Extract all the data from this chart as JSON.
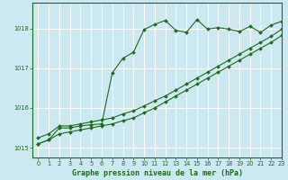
{
  "background_color": "#cce8f0",
  "grid_color": "#ffffff",
  "line_color": "#1e6b1e",
  "xlabel": "Graphe pression niveau de la mer (hPa)",
  "xlabel_color": "#1e6b1e",
  "xlim": [
    -0.5,
    23
  ],
  "ylim": [
    1014.75,
    1018.65
  ],
  "yticks": [
    1015,
    1016,
    1017,
    1018
  ],
  "xticks": [
    0,
    1,
    2,
    3,
    4,
    5,
    6,
    7,
    8,
    9,
    10,
    11,
    12,
    13,
    14,
    15,
    16,
    17,
    18,
    19,
    20,
    21,
    22,
    23
  ],
  "line1_x": [
    0,
    1,
    2,
    3,
    4,
    5,
    6,
    7,
    8,
    9,
    10,
    11,
    12,
    13,
    14,
    15,
    16,
    17,
    18,
    19,
    20,
    21,
    22,
    23
  ],
  "line1_y": [
    1015.1,
    1015.2,
    1015.35,
    1015.4,
    1015.45,
    1015.5,
    1015.55,
    1015.6,
    1015.68,
    1015.75,
    1015.88,
    1016.0,
    1016.15,
    1016.3,
    1016.45,
    1016.6,
    1016.75,
    1016.9,
    1017.05,
    1017.2,
    1017.35,
    1017.5,
    1017.65,
    1017.82
  ],
  "line2_x": [
    0,
    1,
    2,
    3,
    4,
    5,
    6,
    7,
    8,
    9,
    10,
    11,
    12,
    13,
    14,
    15,
    16,
    17,
    18,
    19,
    20,
    21,
    22,
    23
  ],
  "line2_y": [
    1015.25,
    1015.35,
    1015.55,
    1015.55,
    1015.6,
    1015.65,
    1015.7,
    1015.75,
    1015.85,
    1015.93,
    1016.05,
    1016.18,
    1016.3,
    1016.45,
    1016.6,
    1016.75,
    1016.9,
    1017.05,
    1017.2,
    1017.35,
    1017.5,
    1017.65,
    1017.8,
    1017.98
  ],
  "line3_x": [
    0,
    1,
    2,
    3,
    4,
    5,
    6,
    7,
    8,
    9,
    10,
    11,
    12,
    13,
    14,
    15,
    16,
    17,
    18,
    19,
    20,
    21,
    22,
    23
  ],
  "line3_y": [
    1015.1,
    1015.2,
    1015.5,
    1015.5,
    1015.55,
    1015.58,
    1015.6,
    1016.88,
    1017.25,
    1017.4,
    1017.97,
    1018.1,
    1018.2,
    1017.95,
    1017.9,
    1018.22,
    1017.98,
    1018.02,
    1017.98,
    1017.92,
    1018.05,
    1017.9,
    1018.08,
    1018.18
  ]
}
